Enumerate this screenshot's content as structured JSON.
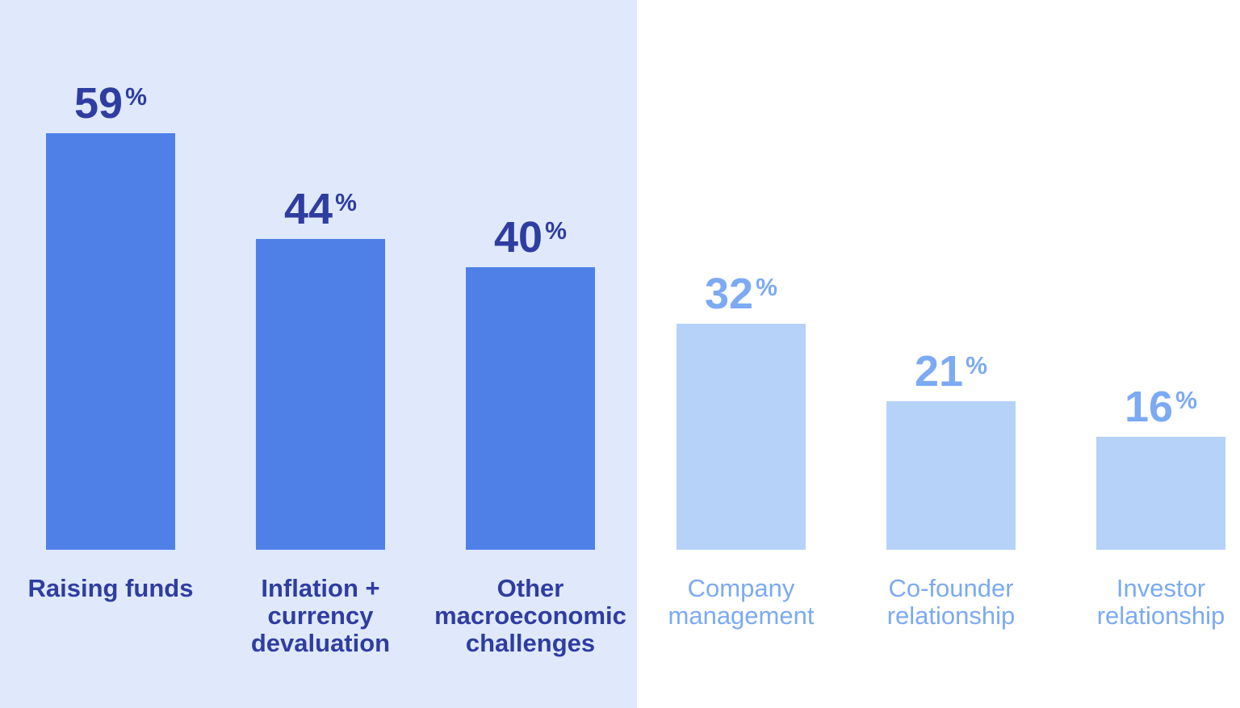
{
  "chart_data": {
    "type": "bar",
    "title": "",
    "unit_suffix": "%",
    "axes": "hidden",
    "gridlines": false,
    "legend": "none",
    "data_labels": "above-bars",
    "ylim": [
      0,
      100
    ],
    "categories": [
      "Raising funds",
      "Inflation + currency devaluation",
      "Other macroeconomic challenges",
      "Company management",
      "Co-founder relationship",
      "Investor relationship"
    ],
    "values": [
      59,
      44,
      40,
      32,
      21,
      16
    ],
    "bars": [
      {
        "label": "Raising funds",
        "value": 59,
        "group": "highlighted"
      },
      {
        "label": "Inflation + currency devaluation",
        "value": 44,
        "group": "highlighted"
      },
      {
        "label": "Other macroeconomic challenges",
        "value": 40,
        "group": "highlighted"
      },
      {
        "label": "Company management",
        "value": 32,
        "group": "muted"
      },
      {
        "label": "Co-founder relationship",
        "value": 21,
        "group": "muted"
      },
      {
        "label": "Investor relationship",
        "value": 16,
        "group": "muted"
      }
    ],
    "colors": {
      "page_background": "#ffffff",
      "panel_background": "#dfe9fb",
      "primary_bar": "#4e80e8",
      "secondary_bar": "#b6d2f9",
      "primary_text": "#2f3da1",
      "secondary_text": "#7caaf3"
    }
  }
}
